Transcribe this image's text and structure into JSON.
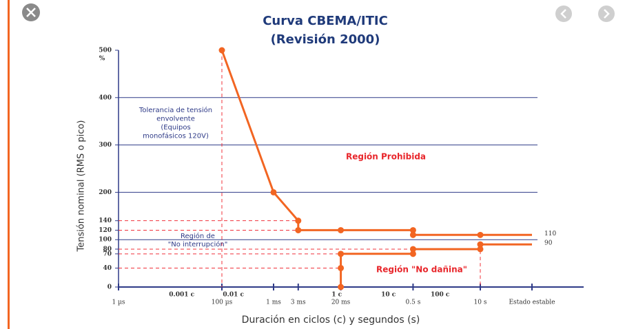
{
  "chart_data": {
    "type": "line",
    "title": [
      "Curva CBEMA/ITIC",
      "(Revisión 2000)"
    ],
    "x_label": "Duración en ciclos (c) y segundos (s)",
    "y_label": "Tensión nominal (RMS o pico)",
    "y_unit": "%",
    "log_x": true,
    "grid": true,
    "grid_color": "#2e3a87",
    "xlim": [
      1e-06,
      1000
    ],
    "ylim": [
      0,
      500
    ],
    "xticks": [
      {
        "value": 1e-06,
        "label": "1 µs"
      },
      {
        "value": 0.0001,
        "label": "100 µs"
      },
      {
        "value": 0.001,
        "label": "1 ms"
      },
      {
        "value": 0.003,
        "label": "3 ms"
      },
      {
        "value": 0.02,
        "label": "20 ms"
      },
      {
        "value": 0.5,
        "label": "0.5 s"
      },
      {
        "value": 10,
        "label": "10 s"
      },
      {
        "value": 100,
        "label": "Estado estable"
      }
    ],
    "cycle_ticks": [
      {
        "value": 1.67e-05,
        "label": "0.001 c"
      },
      {
        "value": 0.000167,
        "label": "0.01 c"
      },
      {
        "value": 0.0167,
        "label": "1 c"
      },
      {
        "value": 0.167,
        "label": "10 c"
      },
      {
        "value": 1.67,
        "label": "100 c"
      }
    ],
    "yticks": [
      0,
      40,
      70,
      80,
      100,
      120,
      140,
      200,
      300,
      400,
      500
    ],
    "series": [
      {
        "color": "#f26522",
        "x": [
          0.0001,
          0.001,
          0.003,
          0.003,
          0.02,
          0.5,
          0.5,
          10,
          100
        ],
        "values": [
          500,
          200,
          140,
          120,
          120,
          120,
          110,
          110,
          110
        ],
        "end_label": "110"
      },
      {
        "color": "#f26522",
        "x": [
          0.02,
          0.02,
          0.02,
          0.5,
          0.5,
          10,
          10,
          100
        ],
        "values": [
          0,
          40,
          70,
          70,
          80,
          80,
          90,
          90
        ],
        "end_label": "90"
      }
    ],
    "annotations": [
      [
        "Tolerancia de tensión",
        "envolvente",
        "(Equipos",
        "monofásicos 120V)"
      ],
      [
        "Región Prohibida"
      ],
      [
        "Región de",
        "\"No interrupción\""
      ],
      [
        "Región \"No dañina\""
      ]
    ]
  }
}
